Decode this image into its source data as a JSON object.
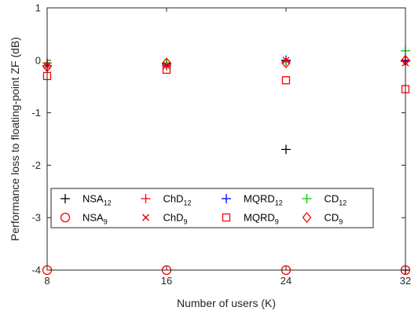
{
  "chart_data": {
    "type": "scatter",
    "title": "",
    "xlabel": "Number of users (K)",
    "ylabel": "Performance loss to floating-point ZF (dB)",
    "xlim": [
      8,
      32
    ],
    "ylim": [
      -4,
      1
    ],
    "xticks": [
      8,
      16,
      24,
      32
    ],
    "yticks": [
      -4,
      -3,
      -2,
      -1,
      0,
      1
    ],
    "grid": false,
    "legend_position": "lower-center",
    "legend_columns": 4,
    "series": [
      {
        "name": "NSA",
        "sub": "12",
        "marker": "plus",
        "color": "#000000",
        "x": [
          8,
          16,
          24,
          32
        ],
        "y": [
          -0.1,
          -0.1,
          -1.7,
          -4.0
        ]
      },
      {
        "name": "ChD",
        "sub": "12",
        "marker": "plus",
        "color": "#ff0000",
        "x": [
          8,
          16,
          24,
          32
        ],
        "y": [
          -0.1,
          -0.1,
          0.0,
          -0.02
        ]
      },
      {
        "name": "MQRD",
        "sub": "12",
        "marker": "plus",
        "color": "#0000ff",
        "x": [
          8,
          16,
          24,
          32
        ],
        "y": [
          -0.05,
          -0.07,
          0.0,
          0.0
        ]
      },
      {
        "name": "CD",
        "sub": "12",
        "marker": "plus",
        "color": "#00cc00",
        "x": [
          8,
          16,
          24,
          32
        ],
        "y": [
          -0.05,
          -0.05,
          -0.02,
          0.18
        ]
      },
      {
        "name": "NSA",
        "sub": "9",
        "marker": "circle",
        "color": "#ff0000",
        "x": [
          8,
          16,
          24,
          32
        ],
        "y": [
          -4.0,
          -4.0,
          -4.0,
          -4.0
        ]
      },
      {
        "name": "ChD",
        "sub": "9",
        "marker": "x",
        "color": "#cc0000",
        "x": [
          8,
          16,
          24,
          32
        ],
        "y": [
          -0.1,
          -0.1,
          0.0,
          -0.05
        ]
      },
      {
        "name": "MQRD",
        "sub": "9",
        "marker": "square",
        "color": "#ff0000",
        "x": [
          8,
          16,
          24,
          32
        ],
        "y": [
          -0.3,
          -0.18,
          -0.38,
          -0.55
        ]
      },
      {
        "name": "CD",
        "sub": "9",
        "marker": "diamond",
        "color": "#ff0000",
        "x": [
          8,
          16,
          24,
          32
        ],
        "y": [
          -0.12,
          -0.05,
          -0.05,
          0.0
        ]
      }
    ]
  }
}
